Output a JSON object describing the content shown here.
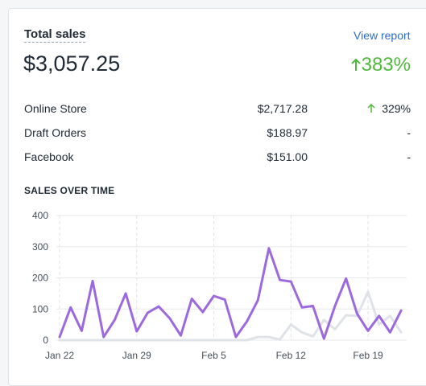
{
  "header": {
    "title": "Total sales",
    "link": "View report"
  },
  "total": {
    "value": "$3,057.25",
    "change": "383%"
  },
  "table": {
    "rows": [
      [
        "Online Store",
        "$2,717.28",
        "329%"
      ],
      [
        "Draft Orders",
        "$188.97",
        "-"
      ],
      [
        "Facebook",
        "$151.00",
        "-"
      ]
    ]
  },
  "chart_data": {
    "type": "line",
    "title": "SALES OVER TIME",
    "categories": [
      "Jan 22",
      null,
      null,
      null,
      null,
      null,
      null,
      "Jan 29",
      null,
      null,
      null,
      null,
      null,
      null,
      "Feb 5",
      null,
      null,
      null,
      null,
      null,
      null,
      "Feb 12",
      null,
      null,
      null,
      null,
      null,
      null,
      "Feb 19",
      null,
      null,
      null
    ],
    "series": [
      {
        "color": "#9c6ade",
        "values": [
          10,
          105,
          30,
          190,
          10,
          65,
          150,
          28,
          88,
          108,
          70,
          15,
          133,
          90,
          142,
          130,
          10,
          60,
          128,
          295,
          193,
          188,
          105,
          110,
          5,
          110,
          198,
          85,
          30,
          78,
          25,
          95
        ]
      },
      {
        "color": "#dfe3e8",
        "values": [
          0,
          0,
          0,
          0,
          0,
          0,
          0,
          0,
          0,
          0,
          0,
          0,
          0,
          0,
          0,
          0,
          0,
          0,
          10,
          10,
          2,
          50,
          25,
          12,
          65,
          35,
          80,
          78,
          155,
          50,
          78,
          25
        ]
      }
    ],
    "ylim": [
      0,
      400
    ],
    "yticks": [
      0,
      100,
      200,
      300,
      400
    ],
    "grid": true
  }
}
